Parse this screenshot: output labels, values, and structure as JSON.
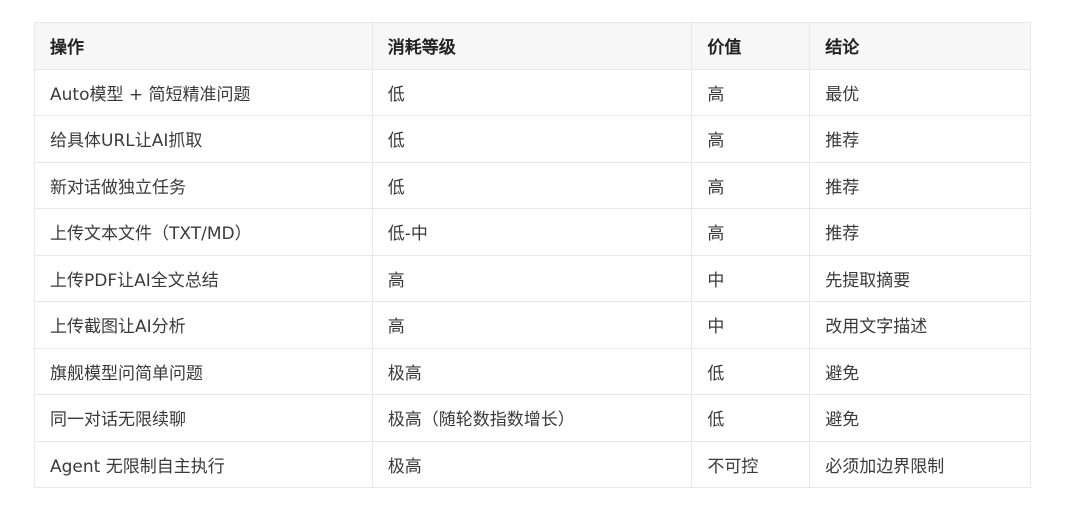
{
  "table": {
    "headers": [
      "操作",
      "消耗等级",
      "价值",
      "结论"
    ],
    "rows": [
      [
        "Auto模型 + 简短精准问题",
        "低",
        "高",
        "最优"
      ],
      [
        "给具体URL让AI抓取",
        "低",
        "高",
        "推荐"
      ],
      [
        "新对话做独立任务",
        "低",
        "高",
        "推荐"
      ],
      [
        "上传文本文件（TXT/MD）",
        "低-中",
        "高",
        "推荐"
      ],
      [
        "上传PDF让AI全文总结",
        "高",
        "中",
        "先提取摘要"
      ],
      [
        "上传截图让AI分析",
        "高",
        "中",
        "改用文字描述"
      ],
      [
        "旗舰模型问简单问题",
        "极高",
        "低",
        "避免"
      ],
      [
        "同一对话无限续聊",
        "极高（随轮数指数增长）",
        "低",
        "避免"
      ],
      [
        "Agent 无限制自主执行",
        "极高",
        "不可控",
        "必须加边界限制"
      ]
    ]
  }
}
